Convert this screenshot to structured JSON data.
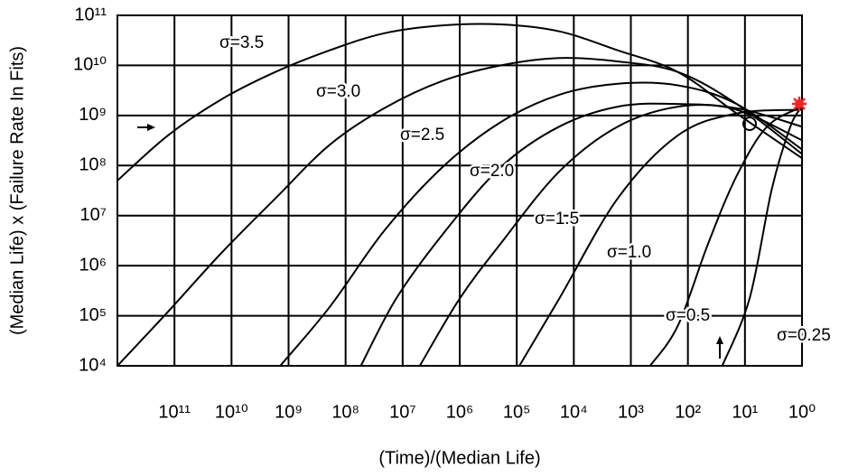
{
  "chart_data": {
    "type": "line",
    "log_x": true,
    "log_y": true,
    "grid": true,
    "xlabel": "(Time)/(Median Life)",
    "ylabel": "(Median Life) x (Failure Rate In Fits)",
    "xlim": [
      1000000000000.0,
      1
    ],
    "ylim": [
      10000.0,
      100000000000.0
    ],
    "xticks": [
      {
        "value": 100000000000.0,
        "label": "10¹¹"
      },
      {
        "value": 10000000000.0,
        "label": "10¹⁰"
      },
      {
        "value": 1000000000.0,
        "label": "10⁹"
      },
      {
        "value": 100000000.0,
        "label": "10⁸"
      },
      {
        "value": 10000000.0,
        "label": "10⁷"
      },
      {
        "value": 1000000.0,
        "label": "10⁶"
      },
      {
        "value": 100000.0,
        "label": "10⁵"
      },
      {
        "value": 10000.0,
        "label": "10⁴"
      },
      {
        "value": 1000.0,
        "label": "10³"
      },
      {
        "value": 100,
        "label": "10²"
      },
      {
        "value": 10,
        "label": "10¹"
      },
      {
        "value": 1,
        "label": "10⁰"
      }
    ],
    "yticks": [
      {
        "value": 10000.0,
        "label": "10⁴"
      },
      {
        "value": 100000.0,
        "label": "10⁵"
      },
      {
        "value": 1000000.0,
        "label": "10⁶"
      },
      {
        "value": 10000000.0,
        "label": "10⁷"
      },
      {
        "value": 100000000.0,
        "label": "10⁸"
      },
      {
        "value": 1000000000.0,
        "label": "10⁹"
      },
      {
        "value": 10000000000.0,
        "label": "10¹⁰"
      },
      {
        "value": 100000000000.0,
        "label": "10¹¹"
      }
    ],
    "series": [
      {
        "name": "σ=3.5",
        "color": "#000000",
        "x": [
          1000000000000.0,
          130000000000.0,
          15000000000.0,
          1700000000.0,
          190000000.0,
          21000000.0,
          2000000.0,
          190000.0,
          18000.0,
          1700.0,
          150,
          14,
          1
        ],
        "values": [
          50000000.0,
          400000000.0,
          2100000000.0,
          7400000000.0,
          20000000000.0,
          44000000000.0,
          63000000000.0,
          66000000000.0,
          48000000000.0,
          20000000000.0,
          7400000000.0,
          1100000000.0,
          140000000.0
        ]
      },
      {
        "name": "σ=3.0",
        "color": "#000000",
        "x": [
          1000000000000.0,
          130000000000.0,
          15000000000.0,
          1700000000.0,
          190000000.0,
          21000000.0,
          2000000.0,
          190000.0,
          18000.0,
          1700.0,
          150,
          14,
          1
        ],
        "values": [
          10000.0,
          120000.0,
          1800000.0,
          22000000.0,
          260000000.0,
          1400000000.0,
          4900000000.0,
          10000000000.0,
          14000000000.0,
          12000000000.0,
          7400000000.0,
          1700000000.0,
          170000000.0
        ]
      },
      {
        "name": "σ=2.5",
        "color": "#000000",
        "x": [
          1400000000.0,
          190000000.0,
          21000000.0,
          2000000.0,
          190000.0,
          18000.0,
          1700.0,
          150,
          14,
          1
        ],
        "values": [
          10000.0,
          150000.0,
          5000000.0,
          93000000.0,
          740000000.0,
          2600000000.0,
          4300000000.0,
          4000000000.0,
          1700000000.0,
          210000000.0
        ]
      },
      {
        "name": "σ=2.0",
        "color": "#000000",
        "x": [
          54000000.0,
          13000000.0,
          2000000.0,
          190000.0,
          18000.0,
          1700.0,
          150,
          14,
          1
        ],
        "values": [
          10000.0,
          220000.0,
          4200000.0,
          93000000.0,
          600000000.0,
          1500000000.0,
          1700000000.0,
          1300000000.0,
          320000000.0
        ]
      },
      {
        "name": "σ=1.5",
        "color": "#000000",
        "x": [
          5000000.0,
          1000000.0,
          190000.0,
          18000.0,
          1700.0,
          150,
          14,
          1
        ],
        "values": [
          10000.0,
          220000.0,
          2800000.0,
          76000000.0,
          600000000.0,
          1500000000.0,
          1400000000.0,
          600000000.0
        ]
      },
      {
        "name": "σ=1.0",
        "color": "#000000",
        "x": [
          90000.0,
          18000.0,
          1700.0,
          150,
          14,
          1
        ],
        "values": [
          10000.0,
          220000.0,
          22000000.0,
          400000000.0,
          1100000000.0,
          1300000000.0
        ]
      },
      {
        "name": "σ=0.5",
        "color": "#000000",
        "x": [
          460,
          150,
          44,
          14,
          4.1,
          1
        ],
        "values": [
          10000.0,
          63000.0,
          2800000.0,
          62000000.0,
          600000000.0,
          1500000000.0
        ]
      },
      {
        "name": "σ=0.25",
        "color": "#000000",
        "x": [
          25,
          8.3,
          3.4,
          1.6,
          1
        ],
        "values": [
          10000.0,
          220000.0,
          33000000.0,
          600000000.0,
          1500000000.0
        ]
      }
    ]
  }
}
